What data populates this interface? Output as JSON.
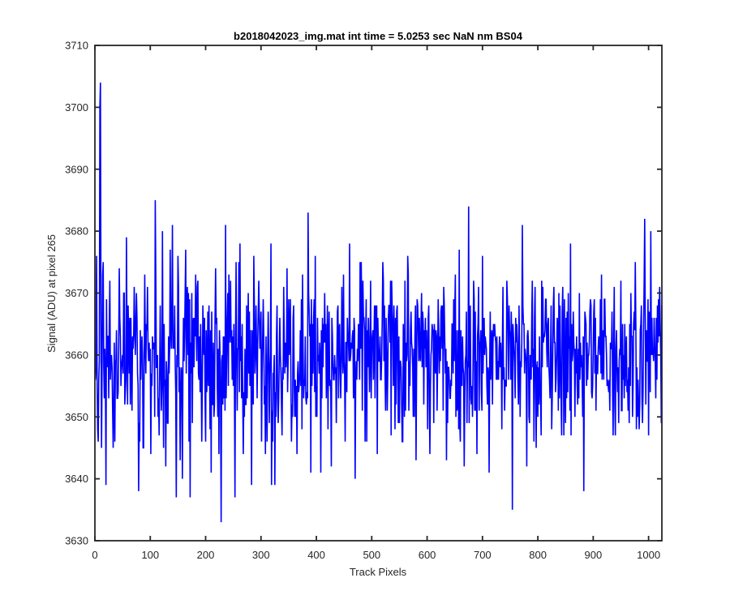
{
  "chart_data": {
    "type": "line",
    "title": "b2018042023_img.mat int time = 5.0253 sec  NaN nm BS04",
    "xlabel": "Track Pixels",
    "ylabel": "Signal (ADU) at pixel 265",
    "xlim": [
      0,
      1024
    ],
    "ylim": [
      3630,
      3710
    ],
    "xticks": [
      0,
      100,
      200,
      300,
      400,
      500,
      600,
      700,
      800,
      900,
      1000
    ],
    "yticks": [
      3630,
      3640,
      3650,
      3660,
      3670,
      3680,
      3690,
      3700,
      3710
    ],
    "grid": false,
    "legend": "none",
    "series_color": "#0000ff",
    "series": [
      {
        "x_start": 1,
        "x_step": 1,
        "count": 1024,
        "mean": 3660,
        "std": 6.5,
        "min": 3633,
        "max": 3704,
        "points": [
          [
            3,
            3676
          ],
          [
            6,
            3646
          ],
          [
            9,
            3700
          ],
          [
            10,
            3704
          ],
          [
            12,
            3645
          ],
          [
            14,
            3673
          ],
          [
            20,
            3639
          ],
          [
            27,
            3672
          ],
          [
            32,
            3651
          ],
          [
            36,
            3646
          ],
          [
            44,
            3674
          ],
          [
            57,
            3679
          ],
          [
            66,
            3658
          ],
          [
            74,
            3665
          ],
          [
            79,
            3638
          ],
          [
            88,
            3645
          ],
          [
            95,
            3671
          ],
          [
            101,
            3644
          ],
          [
            109,
            3685
          ],
          [
            116,
            3647
          ],
          [
            122,
            3680
          ],
          [
            128,
            3642
          ],
          [
            136,
            3677
          ],
          [
            140,
            3681
          ],
          [
            147,
            3637
          ],
          [
            150,
            3676
          ],
          [
            158,
            3640
          ],
          [
            164,
            3677
          ],
          [
            172,
            3637
          ],
          [
            182,
            3673
          ],
          [
            193,
            3646
          ],
          [
            208,
            3648
          ],
          [
            219,
            3665
          ],
          [
            224,
            3644
          ],
          [
            228,
            3633
          ],
          [
            236,
            3681
          ],
          [
            253,
            3637
          ],
          [
            260,
            3675
          ],
          [
            262,
            3678
          ],
          [
            268,
            3644
          ],
          [
            283,
            3639
          ],
          [
            296,
            3672
          ],
          [
            308,
            3644
          ],
          [
            318,
            3678
          ],
          [
            325,
            3639
          ],
          [
            338,
            3647
          ],
          [
            350,
            3669
          ],
          [
            365,
            3644
          ],
          [
            375,
            3673
          ],
          [
            385,
            3683
          ],
          [
            390,
            3641
          ],
          [
            398,
            3676
          ],
          [
            408,
            3641
          ],
          [
            420,
            3668
          ],
          [
            438,
            3667
          ],
          [
            452,
            3646
          ],
          [
            460,
            3678
          ],
          [
            470,
            3640
          ],
          [
            479,
            3675
          ],
          [
            488,
            3646
          ],
          [
            498,
            3672
          ],
          [
            510,
            3644
          ],
          [
            520,
            3675
          ],
          [
            528,
            3651
          ],
          [
            540,
            3668
          ],
          [
            555,
            3646
          ],
          [
            565,
            3676
          ],
          [
            580,
            3643
          ],
          [
            590,
            3670
          ],
          [
            605,
            3644
          ],
          [
            620,
            3669
          ],
          [
            637,
            3649
          ],
          [
            648,
            3669
          ],
          [
            667,
            3642
          ],
          [
            675,
            3684
          ],
          [
            690,
            3644
          ],
          [
            700,
            3676
          ],
          [
            712,
            3641
          ],
          [
            720,
            3665
          ],
          [
            735,
            3648
          ],
          [
            745,
            3669
          ],
          [
            754,
            3635
          ],
          [
            760,
            3666
          ],
          [
            772,
            3681
          ],
          [
            780,
            3642
          ],
          [
            790,
            3672
          ],
          [
            800,
            3650
          ],
          [
            815,
            3669
          ],
          [
            825,
            3648
          ],
          [
            845,
            3671
          ],
          [
            858,
            3651
          ],
          [
            875,
            3670
          ],
          [
            883,
            3638
          ],
          [
            895,
            3669
          ],
          [
            905,
            3651
          ],
          [
            920,
            3669
          ],
          [
            935,
            3654
          ],
          [
            950,
            3672
          ],
          [
            963,
            3651
          ],
          [
            976,
            3675
          ],
          [
            984,
            3652
          ],
          [
            993,
            3682
          ],
          [
            1000,
            3647
          ],
          [
            1004,
            3680
          ],
          [
            1010,
            3666
          ],
          [
            1015,
            3656
          ],
          [
            1020,
            3671
          ],
          [
            1024,
            3668
          ]
        ]
      }
    ]
  }
}
